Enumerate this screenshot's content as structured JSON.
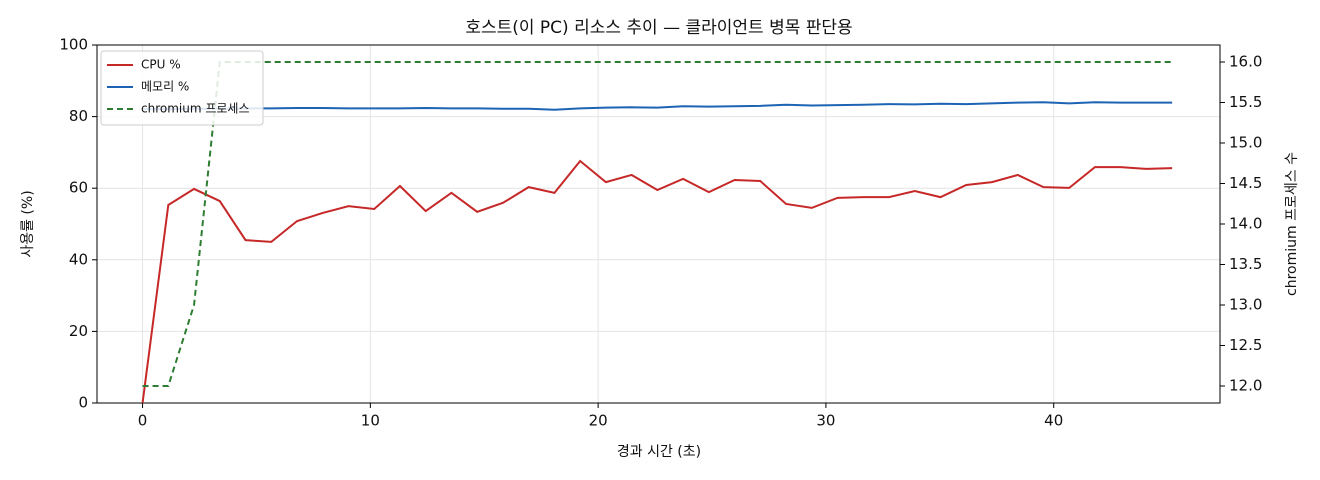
{
  "chart_data": {
    "type": "line",
    "title": "호스트(이 PC) 리소스 추이 — 클라이언트 병목 판단용",
    "x_label": "경과 시간 (초)",
    "y_label": "사용률 (%)",
    "y2_label": "chromium 프로세스 수",
    "x": [
      0,
      1.13,
      2.26,
      3.39,
      4.52,
      5.65,
      6.78,
      7.91,
      9.04,
      10.17,
      11.3,
      12.43,
      13.56,
      14.69,
      15.82,
      16.95,
      18.08,
      19.21,
      20.34,
      21.47,
      22.6,
      23.73,
      24.86,
      25.99,
      27.12,
      28.25,
      29.38,
      30.51,
      31.64,
      32.77,
      33.9,
      35.03,
      36.16,
      37.29,
      38.42,
      39.55,
      40.68,
      41.81,
      42.94,
      44.07,
      45.2
    ],
    "series": [
      {
        "name": "CPU %",
        "color": "#c62828",
        "dash": false,
        "values": [
          0,
          55.3,
          59.8,
          56.4,
          45.5,
          45.0,
          50.8,
          53.1,
          55.0,
          54.2,
          60.6,
          53.6,
          58.7,
          53.4,
          55.9,
          60.3,
          58.7,
          67.6,
          61.7,
          63.7,
          59.5,
          62.6,
          58.9,
          62.3,
          62.0,
          55.6,
          54.5,
          57.3,
          57.5,
          57.5,
          59.2,
          57.5,
          60.9,
          61.7,
          63.7,
          60.3,
          60.1,
          65.9,
          65.9,
          65.4,
          65.6
        ]
      },
      {
        "name": "메모리 %",
        "color": "#1e64b4",
        "dash": false,
        "values": [
          82.1,
          82.1,
          82.2,
          82.2,
          82.3,
          82.3,
          82.4,
          82.4,
          82.3,
          82.3,
          82.3,
          82.4,
          82.3,
          82.3,
          82.2,
          82.2,
          81.9,
          82.3,
          82.5,
          82.6,
          82.5,
          82.9,
          82.8,
          82.9,
          83.0,
          83.3,
          83.1,
          83.2,
          83.3,
          83.5,
          83.4,
          83.6,
          83.5,
          83.7,
          83.9,
          84.0,
          83.7,
          84.0,
          83.9,
          83.9,
          83.9
        ]
      },
      {
        "name": "chromium 프로세스",
        "color": "#2e7d32",
        "dash": true,
        "axis": "y2",
        "values": [
          12,
          12,
          13,
          16,
          16,
          16,
          16,
          16,
          16,
          16,
          16,
          16,
          16,
          16,
          16,
          16,
          16,
          16,
          16,
          16,
          16,
          16,
          16,
          16,
          16,
          16,
          16,
          16,
          16,
          16,
          16,
          16,
          16,
          16,
          16,
          16,
          16,
          16,
          16,
          16,
          16
        ]
      }
    ],
    "xlim": [
      -2.0,
      47.3
    ],
    "xticks": [
      0,
      10,
      20,
      30,
      40
    ],
    "ylim": [
      0,
      100
    ],
    "yticks": [
      0,
      20,
      40,
      60,
      80,
      100
    ],
    "y2lim": [
      11.79,
      16.21
    ],
    "y2ticks": [
      {
        "value": 12,
        "label": "12.0"
      },
      12.5,
      {
        "value": 13,
        "label": "13.0"
      },
      13.5,
      {
        "value": 14,
        "label": "14.0"
      },
      14.5,
      {
        "value": 15,
        "label": "15.0"
      },
      15.5,
      {
        "value": 16,
        "label": "16.0"
      }
    ],
    "grid": true,
    "legend": "upper-left"
  }
}
